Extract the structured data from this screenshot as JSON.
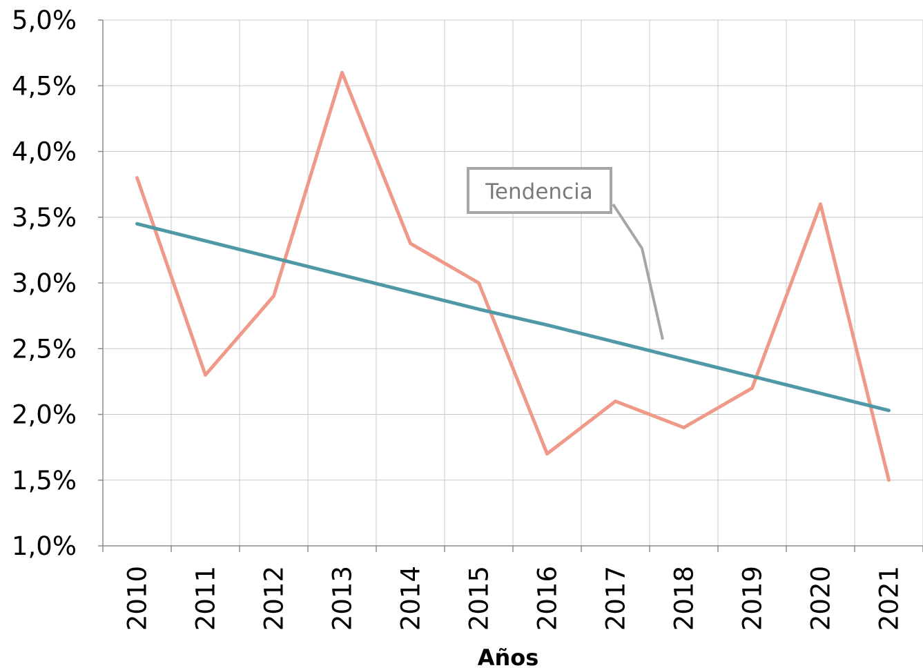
{
  "chart_data": {
    "type": "line",
    "title": "",
    "xlabel": "Años",
    "ylabel": "",
    "categories": [
      "2010",
      "2011",
      "2012",
      "2013",
      "2014",
      "2015",
      "2016",
      "2017",
      "2018",
      "2019",
      "2020",
      "2021"
    ],
    "ylim": [
      0.01,
      0.05
    ],
    "yticks": [
      0.01,
      0.015,
      0.02,
      0.025,
      0.03,
      0.035,
      0.04,
      0.045,
      0.05
    ],
    "ytick_labels": [
      "1,0%",
      "1,5%",
      "2,0%",
      "2,5%",
      "3,0%",
      "3,5%",
      "4,0%",
      "4,5%",
      "5,0%"
    ],
    "grid": true,
    "legend": "none",
    "series": [
      {
        "values": [
          0.038,
          0.023,
          0.029,
          0.046,
          0.033,
          0.03,
          0.017,
          0.021,
          0.019,
          0.022,
          0.036,
          0.015
        ],
        "color": "#ef9a88"
      },
      {
        "trendline": true,
        "values": [
          0.0345,
          0.0332,
          0.0319,
          0.0306,
          0.0293,
          0.028,
          0.0268,
          0.0255,
          0.0242,
          0.0229,
          0.0216,
          0.0203
        ],
        "color": "#4f98a5"
      }
    ],
    "annotations": [
      {
        "text": "Tendencia",
        "points_to": "trendline",
        "border_color": "#a6a6a6"
      }
    ]
  }
}
